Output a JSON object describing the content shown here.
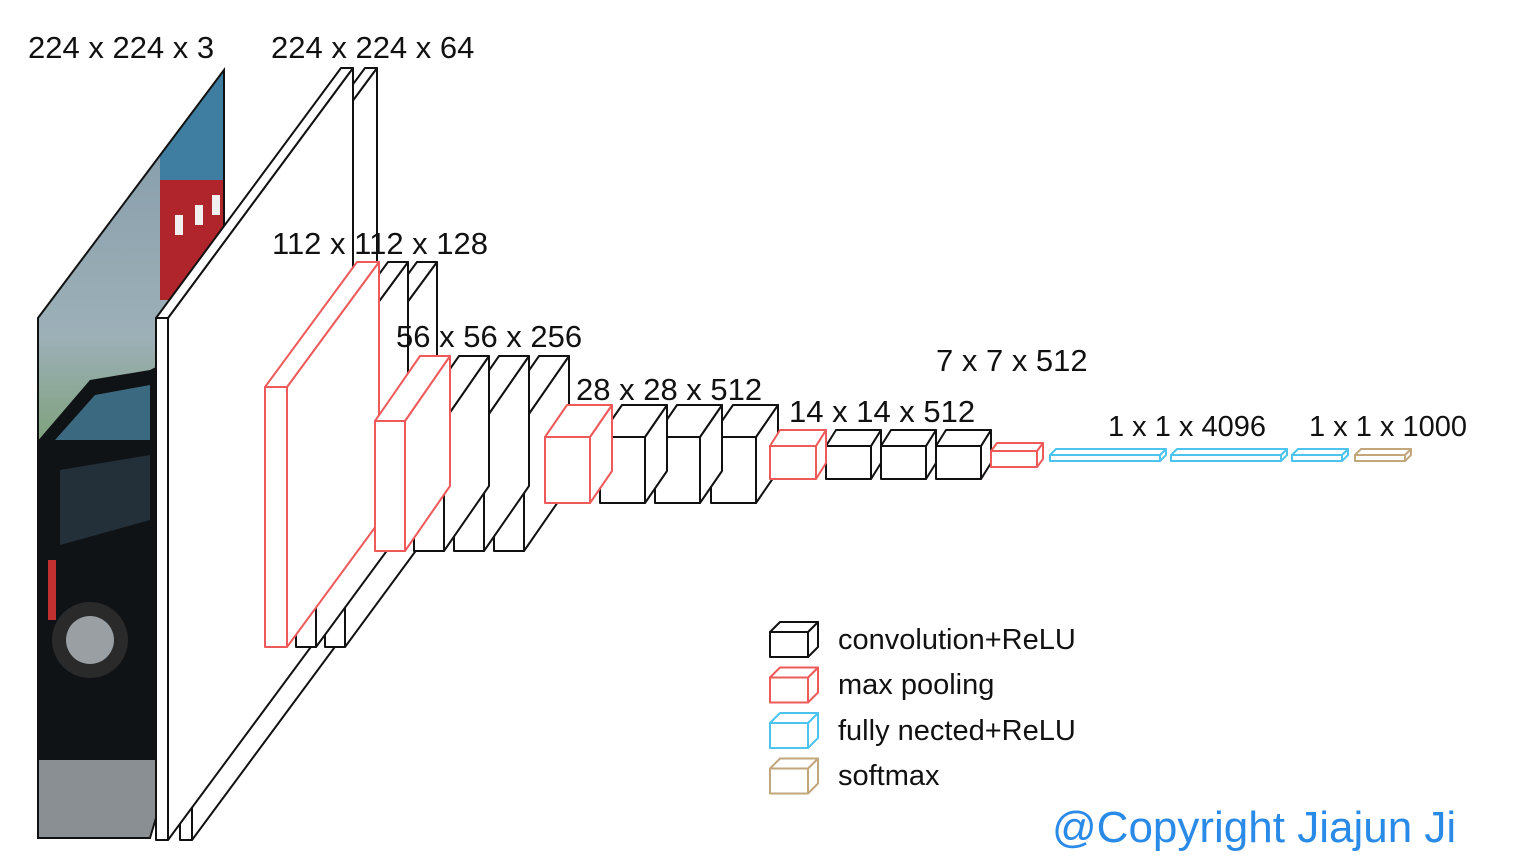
{
  "colors": {
    "conv": "#111111",
    "pool": "#ee5a5a",
    "fc": "#4dc4ee",
    "softmax": "#c2a77d",
    "copyright": "#2a8ae8"
  },
  "labels": {
    "input": "224 x 224 x 3",
    "conv1": "224 x 224 x 64",
    "conv2": "112 x 112 x 128",
    "conv3": "56 x 56 x 256",
    "conv4": "28 x 28 x 512",
    "conv5": "14 x 14 x 512",
    "pool5": "7 x 7 x 512",
    "fc": "1 x 1 x 4096",
    "output": "1 x 1 x 1000"
  },
  "legend": [
    {
      "kind": "conv",
      "label": "convolution+ReLU"
    },
    {
      "kind": "pool",
      "label": "max pooling"
    },
    {
      "kind": "fc",
      "label": "fully nected+ReLU"
    },
    {
      "kind": "softmax",
      "label": "softmax"
    }
  ],
  "copyright": "@Copyright Jiajun Ji"
}
